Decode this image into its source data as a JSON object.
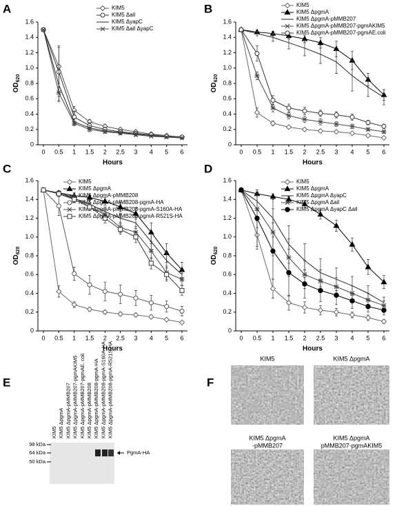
{
  "chart_data": [
    {
      "type": "line",
      "panel_label": "A",
      "xlabel": "Hours",
      "ylabel": "OD",
      "ylabel_subscript": "620",
      "categories": [
        "0",
        "0.5",
        "1",
        "1.5",
        "2",
        "2.5",
        "3",
        "4",
        "5",
        "6"
      ],
      "ylim": [
        0,
        1.6
      ],
      "yticks": [
        0,
        0.2,
        0.4,
        0.6,
        0.8,
        {
          "value": 1,
          "label": "1.0"
        },
        1.2,
        1.4,
        1.6
      ],
      "series": [
        {
          "name": "KIM5",
          "color": "#555",
          "marker": "diamond",
          "values": [
            1.5,
            1.02,
            0.45,
            0.3,
            0.24,
            0.2,
            0.17,
            0.14,
            0.12,
            0.1
          ],
          "errors": [
            0,
            0.27,
            0.05,
            0.03,
            0.03,
            0.02,
            0.02,
            0.02,
            0.01,
            0.01
          ]
        },
        {
          "name": "KIM5 Δail",
          "color": "#333",
          "marker": "circle",
          "values": [
            1.5,
            0.95,
            0.36,
            0.25,
            0.2,
            0.17,
            0.15,
            0.13,
            0.11,
            0.1
          ],
          "errors": [
            0,
            0.32,
            0.08,
            0.04,
            0.03,
            0.03,
            0.02,
            0.02,
            0.01,
            0.01
          ]
        },
        {
          "name": "KIM5 ΔyapC",
          "color": "#222",
          "marker": "none",
          "values": [
            1.5,
            0.78,
            0.3,
            0.22,
            0.18,
            0.16,
            0.14,
            0.12,
            0.1,
            0.09
          ],
          "errors": [
            0,
            0.2,
            0.04,
            0.03,
            0.02,
            0.02,
            0.02,
            0.01,
            0.01,
            0.01
          ]
        },
        {
          "name": "KIM5 Δail ΔyapC",
          "color": "#444",
          "marker": "x",
          "values": [
            1.5,
            0.68,
            0.28,
            0.2,
            0.17,
            0.15,
            0.13,
            0.11,
            0.1,
            0.09
          ],
          "errors": [
            0,
            0.12,
            0.03,
            0.03,
            0.02,
            0.02,
            0.02,
            0.01,
            0.01,
            0.01
          ]
        }
      ]
    },
    {
      "type": "line",
      "panel_label": "B",
      "xlabel": "Hours",
      "ylabel": "OD",
      "ylabel_subscript": "620",
      "categories": [
        "0",
        "0.5",
        "1",
        "1.5",
        "2",
        "2.5",
        "3",
        "4",
        "5",
        "6"
      ],
      "ylim": [
        0,
        1.6
      ],
      "yticks": [
        0,
        0.2,
        0.4,
        0.6,
        0.8,
        {
          "value": 1,
          "label": "1.0"
        },
        1.2,
        1.4,
        1.6
      ],
      "series": [
        {
          "name": "KIM5",
          "color": "#666",
          "marker": "diamond",
          "values": [
            1.5,
            0.42,
            0.28,
            0.23,
            0.2,
            0.18,
            0.17,
            0.15,
            0.12,
            0.09
          ],
          "errors": [
            0,
            0.06,
            0.03,
            0.02,
            0.02,
            0.02,
            0.02,
            0.02,
            0.01,
            0.01
          ]
        },
        {
          "name": "KIM5 ΔpgmA",
          "color": "#000",
          "marker": "triangle",
          "values": [
            1.5,
            1.47,
            1.45,
            1.42,
            1.38,
            1.33,
            1.25,
            1.1,
            0.85,
            0.65
          ],
          "errors": [
            0,
            0.02,
            0.03,
            0.04,
            0.05,
            0.07,
            0.1,
            0.12,
            0.08,
            0.07
          ]
        },
        {
          "name": "KIM5 ΔpgmA-pMMB207",
          "color": "#222",
          "marker": "none",
          "values": [
            1.5,
            1.45,
            1.4,
            1.33,
            1.26,
            1.18,
            1.08,
            0.9,
            0.75,
            0.62
          ],
          "errors": [
            0,
            0.03,
            0.05,
            0.08,
            0.1,
            0.12,
            0.15,
            0.2,
            0.12,
            0.1
          ]
        },
        {
          "name": "KIM5 ΔpgmA-pMMB207-pgmAKIM5",
          "color": "#444",
          "marker": "x",
          "values": [
            1.5,
            0.9,
            0.48,
            0.38,
            0.33,
            0.3,
            0.27,
            0.24,
            0.2,
            0.17
          ],
          "errors": [
            0,
            0.05,
            0.05,
            0.04,
            0.04,
            0.04,
            0.03,
            0.03,
            0.02,
            0.02
          ]
        },
        {
          "name": "KIM5 ΔpgmA-pMMB207-pgmAE.coli",
          "color": "#333",
          "marker": "circle",
          "values": [
            1.5,
            1.19,
            0.58,
            0.48,
            0.44,
            0.41,
            0.39,
            0.36,
            0.29,
            0.24
          ],
          "errors": [
            0,
            0.1,
            0.06,
            0.05,
            0.05,
            0.04,
            0.04,
            0.04,
            0.03,
            0.03
          ]
        }
      ]
    },
    {
      "type": "line",
      "panel_label": "C",
      "xlabel": "Hours",
      "ylabel": "OD",
      "ylabel_subscript": "620",
      "categories": [
        "0",
        "0.5",
        "1",
        "1.5",
        "2",
        "2.5",
        "3",
        "4",
        "5",
        "6"
      ],
      "ylim": [
        0,
        1.6
      ],
      "yticks": [
        0,
        0.2,
        0.4,
        0.6,
        0.8,
        {
          "value": 1,
          "label": "1.0"
        },
        1.2,
        1.4,
        1.6
      ],
      "series": [
        {
          "name": "KIM5",
          "color": "#666",
          "marker": "diamond",
          "values": [
            1.5,
            0.42,
            0.28,
            0.23,
            0.2,
            0.18,
            0.17,
            0.15,
            0.12,
            0.09
          ],
          "errors": [
            0,
            0.06,
            0.03,
            0.02,
            0.02,
            0.02,
            0.02,
            0.02,
            0.01,
            0.01
          ]
        },
        {
          "name": "KIM5 ΔpgmA",
          "color": "#000",
          "marker": "triangle",
          "values": [
            1.5,
            1.47,
            1.44,
            1.42,
            1.38,
            1.32,
            1.25,
            1.05,
            0.83,
            0.65
          ],
          "errors": [
            0,
            0.02,
            0.03,
            0.03,
            0.04,
            0.05,
            0.06,
            0.1,
            0.1,
            0.08
          ]
        },
        {
          "name": "KIM5 ΔpgmA-pMMB208",
          "color": "#222",
          "marker": "none",
          "values": [
            1.5,
            1.46,
            1.41,
            1.35,
            1.27,
            1.2,
            1.15,
            0.95,
            0.75,
            0.6
          ],
          "errors": [
            0,
            0.02,
            0.03,
            0.04,
            0.05,
            0.05,
            0.06,
            0.08,
            0.08,
            0.07
          ]
        },
        {
          "name": "KIM5 ΔpgmA-pMMB208-pgmA-HA",
          "color": "#555",
          "marker": "circle",
          "values": [
            1.5,
            1.33,
            0.61,
            0.49,
            0.42,
            0.39,
            0.35,
            0.3,
            0.26,
            0.21
          ],
          "errors": [
            0,
            0.1,
            0.07,
            0.1,
            0.1,
            0.1,
            0.08,
            0.08,
            0.06,
            0.05
          ]
        },
        {
          "name": "KIM5 ΔpgmA-pMMB208-pgmA-S160A-HA",
          "color": "#444",
          "marker": "x",
          "values": [
            1.5,
            1.47,
            1.42,
            1.32,
            1.24,
            1.1,
            1.05,
            0.85,
            0.62,
            0.55
          ],
          "errors": [
            0,
            0.02,
            0.03,
            0.04,
            0.05,
            0.05,
            0.06,
            0.08,
            0.07,
            0.06
          ]
        },
        {
          "name": "KIM5 ΔpgmA-pMMB208-pgmA-R521S-HA",
          "color": "#333",
          "marker": "square",
          "values": [
            1.5,
            1.46,
            1.4,
            1.32,
            1.2,
            1.08,
            1.0,
            0.72,
            0.6,
            0.43
          ],
          "errors": [
            0,
            0.02,
            0.03,
            0.04,
            0.05,
            0.05,
            0.06,
            0.06,
            0.07,
            0.05
          ]
        }
      ]
    },
    {
      "type": "line",
      "panel_label": "D",
      "xlabel": "Hours",
      "ylabel": "OD",
      "ylabel_subscript": "620",
      "categories": [
        "0",
        "0.5",
        "1",
        "1.5",
        "2",
        "2.5",
        "3",
        "4",
        "5",
        "6"
      ],
      "ylim": [
        0,
        1.6
      ],
      "yticks": [
        0,
        0.2,
        0.4,
        0.6,
        0.8,
        {
          "value": 1,
          "label": "1.0"
        },
        1.2,
        1.4,
        1.6
      ],
      "series": [
        {
          "name": "KIM5",
          "color": "#666",
          "marker": "diamond",
          "values": [
            1.5,
            1.02,
            0.45,
            0.3,
            0.25,
            0.22,
            0.2,
            0.17,
            0.14,
            0.1
          ],
          "errors": [
            0,
            0.15,
            0.1,
            0.08,
            0.06,
            0.05,
            0.04,
            0.03,
            0.03,
            0.02
          ]
        },
        {
          "name": "KIM5 ΔpgmA",
          "color": "#000",
          "marker": "triangle",
          "values": [
            1.5,
            1.46,
            1.43,
            1.4,
            1.35,
            1.24,
            1.12,
            0.92,
            0.68,
            0.52
          ],
          "errors": [
            0,
            0.02,
            0.03,
            0.03,
            0.04,
            0.05,
            0.06,
            0.07,
            0.08,
            0.07
          ]
        },
        {
          "name": "KIM5 ΔpgmA ΔyapC",
          "color": "#222",
          "marker": "none",
          "values": [
            1.5,
            1.38,
            1.2,
            0.92,
            0.75,
            0.62,
            0.55,
            0.48,
            0.4,
            0.3
          ],
          "errors": [
            0,
            0.1,
            0.2,
            0.2,
            0.18,
            0.15,
            0.12,
            0.1,
            0.08,
            0.06
          ]
        },
        {
          "name": "KIM5 ΔpgmA Δail",
          "color": "#444",
          "marker": "x",
          "values": [
            1.5,
            1.3,
            1.05,
            0.78,
            0.6,
            0.53,
            0.47,
            0.4,
            0.33,
            0.27
          ],
          "errors": [
            0,
            0.2,
            0.25,
            0.2,
            0.15,
            0.12,
            0.1,
            0.08,
            0.07,
            0.05
          ]
        },
        {
          "name": "KIM5 ΔpgmA ΔyapC Δail",
          "color": "#000",
          "marker": "dot",
          "values": [
            1.5,
            1.2,
            0.85,
            0.62,
            0.5,
            0.43,
            0.38,
            0.32,
            0.26,
            0.22
          ],
          "errors": [
            0,
            0.3,
            0.3,
            0.25,
            0.15,
            0.12,
            0.1,
            0.08,
            0.06,
            0.05
          ]
        }
      ]
    }
  ],
  "gel": {
    "panel_label": "E",
    "lanes": [
      "KIM5",
      "KIM5 ΔpgmA",
      "KIM5 ΔpgmA-pMMB207",
      "KIM5 ΔpgmA-pMMB207-pgmAKIM5",
      "KIM5 ΔpgmA-pMMB207-pgmAE. coli",
      "KIM5 ΔpgmA-pMMB208",
      "KIM5 ΔpgmA-pMMB208-pgmA-HA",
      "KIM5 ΔpgmA-pMMB208-pgmA-S160A-HA",
      "KIM5 ΔpgmA-pMMB208-pgmA-R521S-HA"
    ],
    "markers": [
      "98 kDa",
      "64 kDa",
      "50 kDa"
    ],
    "band_label": "PgmA-HA"
  },
  "micrographs": {
    "panel_label": "F",
    "captions": [
      [
        "KIM5"
      ],
      [
        "KIM5 ΔpgmA"
      ],
      [
        "KIM5 ΔpgmA",
        "-pMMB207"
      ],
      [
        "KIM5 ΔpgmA",
        "pMMB207-pgmAKIM5"
      ]
    ]
  }
}
